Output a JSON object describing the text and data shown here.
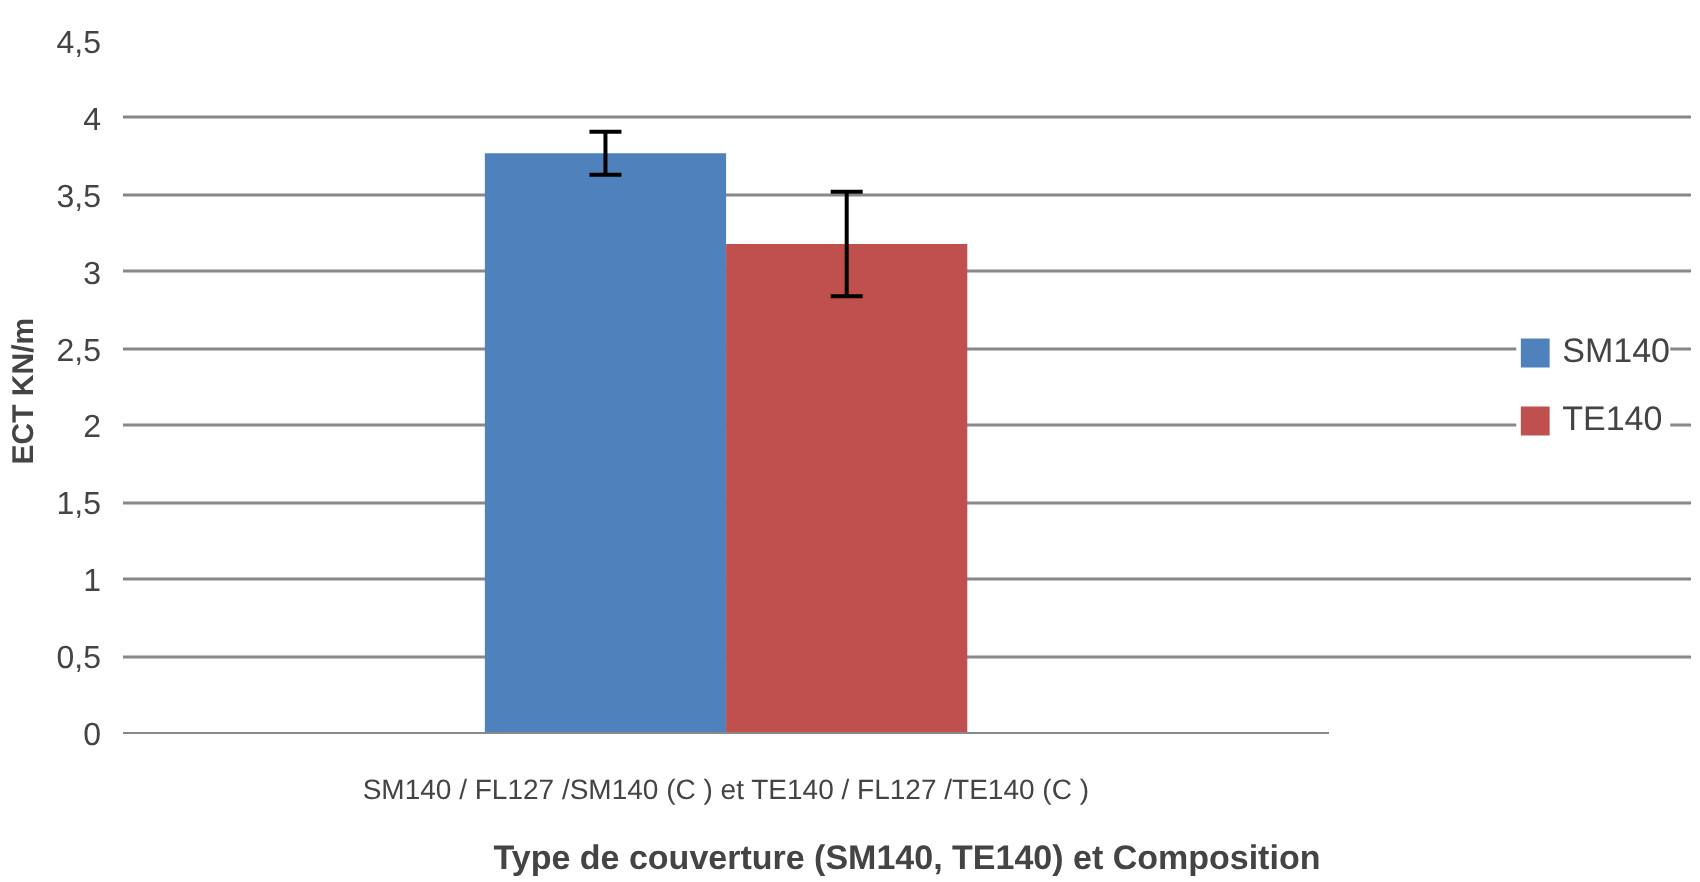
{
  "chart_data": {
    "type": "bar",
    "xlabel": "Type de couverture (SM140, TE140) et Composition",
    "ylabel": "ECT  KN/m",
    "categories": [
      "SM140 / FL127 /SM140 (C ) et TE140 / FL127 /TE140 (C )"
    ],
    "series": [
      {
        "name": "SM140",
        "color": "#4f81bd",
        "values": [
          3.77
        ],
        "errors": [
          0.14
        ]
      },
      {
        "name": "TE140",
        "color": "#c0504d",
        "values": [
          3.18
        ],
        "errors": [
          0.34
        ]
      }
    ],
    "ylim": [
      0,
      4.5
    ],
    "yticks": [
      {
        "value": 0,
        "label": "0"
      },
      {
        "value": 0.5,
        "label": "0,5"
      },
      {
        "value": 1,
        "label": "1"
      },
      {
        "value": 1.5,
        "label": "1,5"
      },
      {
        "value": 2,
        "label": "2"
      },
      {
        "value": 2.5,
        "label": "2,5"
      },
      {
        "value": 3,
        "label": "3"
      },
      {
        "value": 3.5,
        "label": "3,5"
      },
      {
        "value": 4,
        "label": "4"
      },
      {
        "value": 4.5,
        "label": "4,5"
      }
    ],
    "grid": "y",
    "legend": "right"
  }
}
